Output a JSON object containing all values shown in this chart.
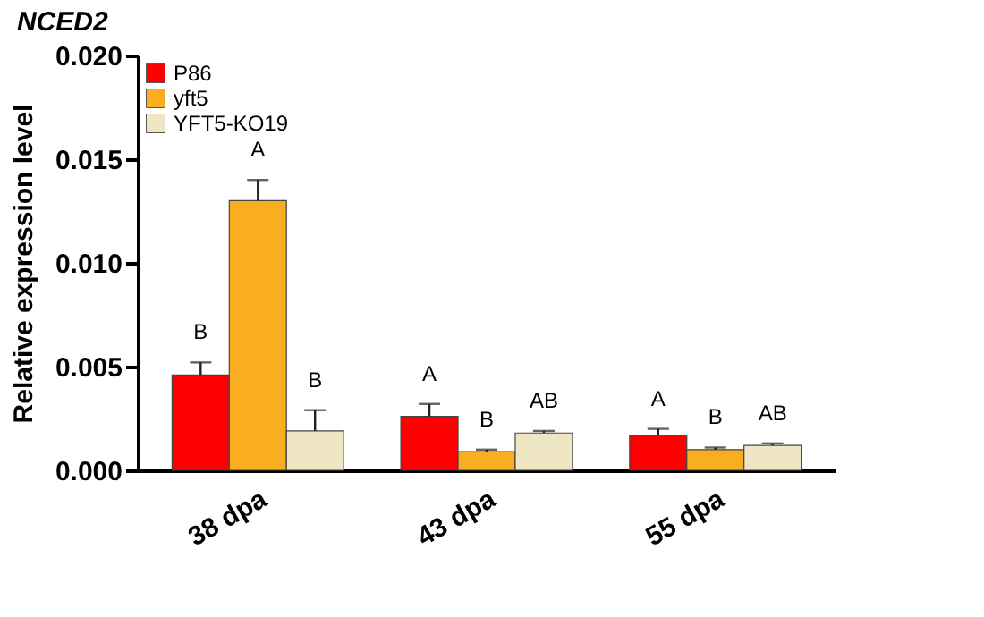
{
  "chart_data": {
    "type": "bar",
    "title": "NCED2",
    "ylabel": "Relative expression level",
    "categories": [
      "38 dpa",
      "43 dpa",
      "55 dpa"
    ],
    "series": [
      {
        "name": "P86",
        "color": "#ff0000",
        "values": [
          0.0046,
          0.0026,
          0.0017
        ],
        "errors": [
          [
            0.0046,
            0.0052
          ],
          [
            0.0026,
            0.0032
          ],
          [
            0.0017,
            0.002
          ]
        ],
        "value_labels": [
          "B",
          "A",
          "A"
        ]
      },
      {
        "name": "yft5",
        "color": "#f9ae22",
        "values": [
          0.013,
          0.0009,
          0.001
        ],
        "errors": [
          [
            0.013,
            0.014
          ],
          [
            0.0009,
            0.001
          ],
          [
            0.001,
            0.0011
          ]
        ],
        "value_labels": [
          "A",
          "B",
          "B"
        ]
      },
      {
        "name": "YFT5-KO19",
        "color": "#efe6c4",
        "values": [
          0.0019,
          0.0018,
          0.0012
        ],
        "errors": [
          [
            0.0019,
            0.0029
          ],
          [
            0.0018,
            0.0019
          ],
          [
            0.0012,
            0.0013
          ]
        ],
        "value_labels": [
          "B",
          "AB",
          "AB"
        ]
      }
    ],
    "ylim": [
      0,
      0.02
    ],
    "yticks": [
      {
        "value": 0,
        "label": "0.000"
      },
      {
        "value": 0.005,
        "label": "0.005"
      },
      {
        "value": 0.01,
        "label": "0.010"
      },
      {
        "value": 0.015,
        "label": "0.015"
      },
      {
        "value": 0.02,
        "label": "0.020"
      }
    ],
    "grid": false,
    "legend": "top left"
  }
}
